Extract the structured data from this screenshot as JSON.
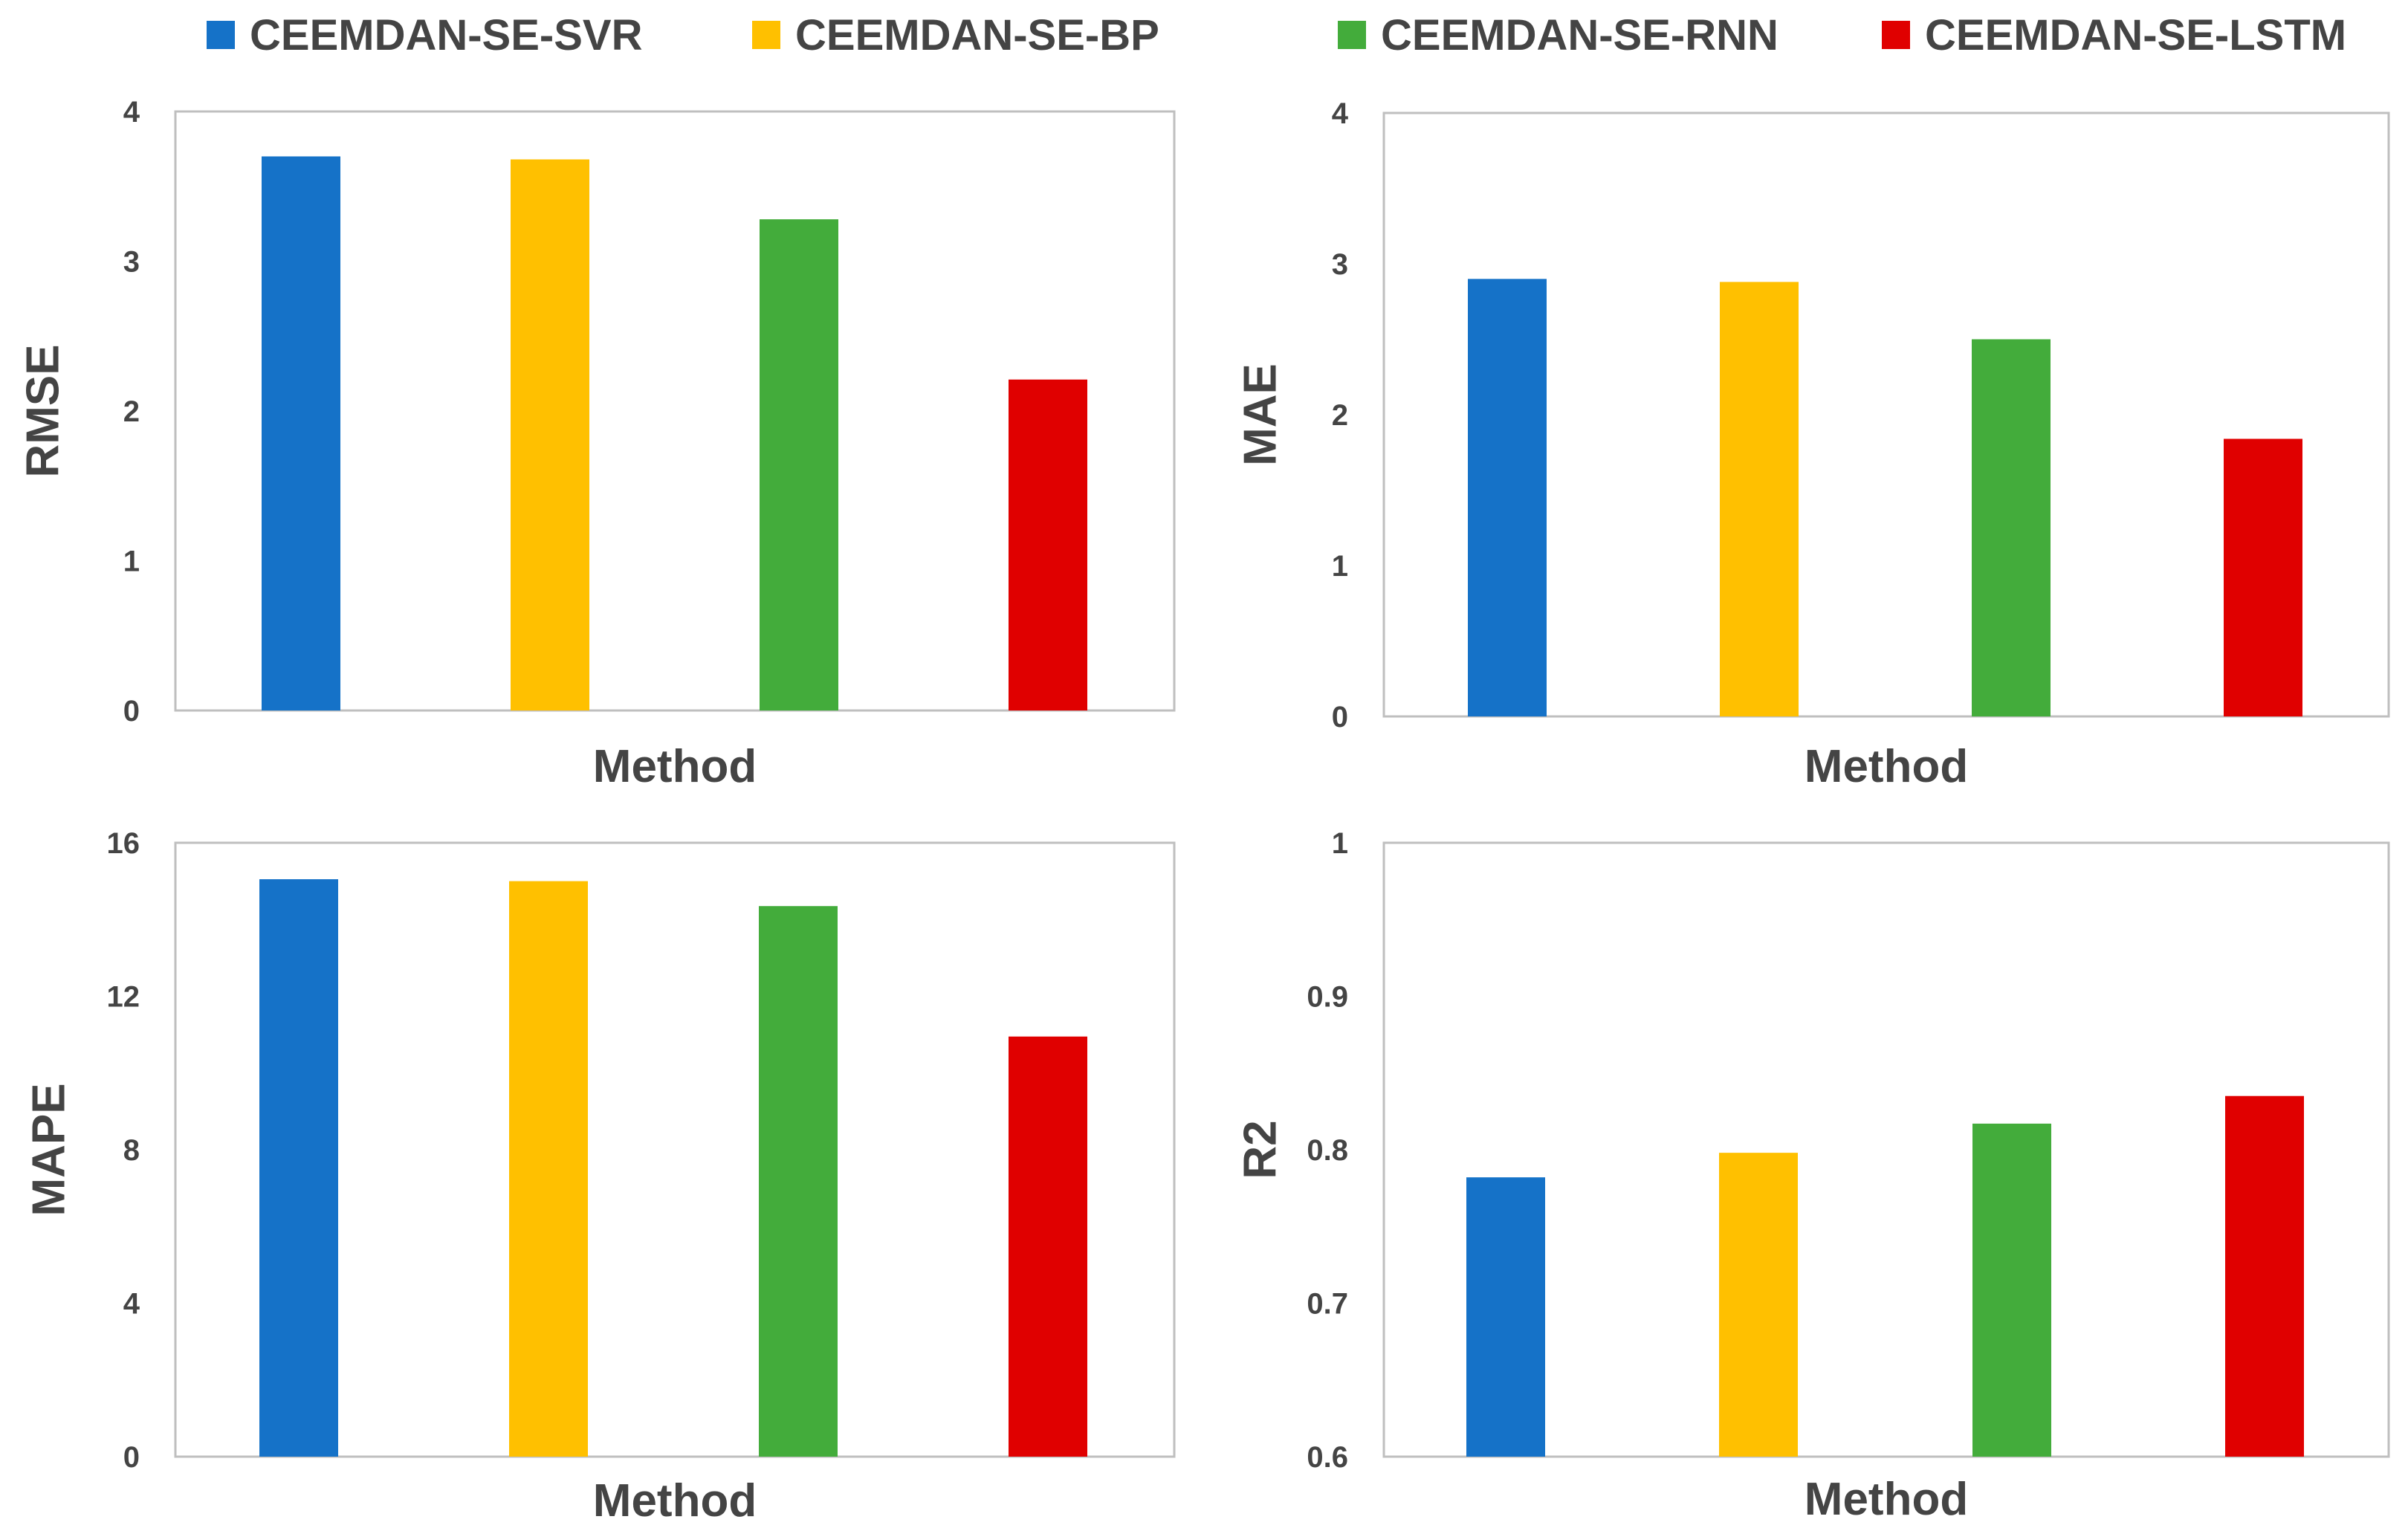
{
  "legend": {
    "items": [
      {
        "label": "CEEMDAN-SE-SVR",
        "color": "#1572C8"
      },
      {
        "label": "CEEMDAN-SE-BP",
        "color": "#FFC000"
      },
      {
        "label": "CEEMDAN-SE-RNN",
        "color": "#43AC3B"
      },
      {
        "label": "CEEMDAN-SE-LSTM",
        "color": "#E00000"
      }
    ]
  },
  "chart_data": [
    {
      "type": "bar",
      "categories": [
        "CEEMDAN-SE-SVR",
        "CEEMDAN-SE-BP",
        "CEEMDAN-SE-RNN",
        "CEEMDAN-SE-LSTM"
      ],
      "values": [
        3.7,
        3.68,
        3.28,
        2.21
      ],
      "xlabel": "Method",
      "ylabel": "RMSE",
      "ylim": [
        0,
        4
      ],
      "yticks": [
        "0",
        "1",
        "2",
        "3",
        "4"
      ]
    },
    {
      "type": "bar",
      "categories": [
        "CEEMDAN-SE-SVR",
        "CEEMDAN-SE-BP",
        "CEEMDAN-SE-RNN",
        "CEEMDAN-SE-LSTM"
      ],
      "values": [
        2.9,
        2.88,
        2.5,
        1.84
      ],
      "xlabel": "Method",
      "ylabel": "MAE",
      "ylim": [
        0,
        4
      ],
      "yticks": [
        "0",
        "1",
        "2",
        "3",
        "4"
      ]
    },
    {
      "type": "bar",
      "categories": [
        "CEEMDAN-SE-SVR",
        "CEEMDAN-SE-BP",
        "CEEMDAN-SE-RNN",
        "CEEMDAN-SE-LSTM"
      ],
      "values": [
        15.05,
        15.0,
        14.35,
        10.95
      ],
      "xlabel": "Method",
      "ylabel": "MAPE",
      "ylim": [
        0,
        16
      ],
      "yticks": [
        "0",
        "4",
        "8",
        "12",
        "16"
      ]
    },
    {
      "type": "bar",
      "categories": [
        "CEEMDAN-SE-SVR",
        "CEEMDAN-SE-BP",
        "CEEMDAN-SE-RNN",
        "CEEMDAN-SE-LSTM"
      ],
      "values": [
        0.782,
        0.798,
        0.817,
        0.835
      ],
      "xlabel": "Method",
      "ylabel": "R2",
      "ylim": [
        0.6,
        1.0
      ],
      "yticks": [
        "0.6",
        "0.7",
        "0.8",
        "0.9",
        "1"
      ]
    }
  ]
}
